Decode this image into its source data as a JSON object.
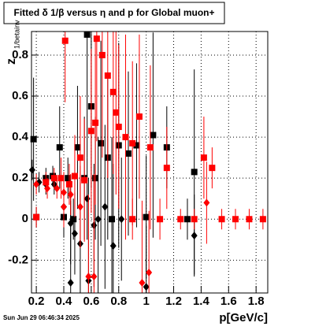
{
  "chart_data": {
    "type": "scatter",
    "title": "Fitted δ 1/β versus η and p for Global muon+",
    "ylabel": "z",
    "ylabel_sub": "1/betainv",
    "xlabel": "p[GeV/c]",
    "footer": "Sun Jun 29 06:46:34 2025",
    "xlim": [
      0.165,
      1.885
    ],
    "ylim": [
      -0.36,
      0.915
    ],
    "xticks": [
      0.2,
      0.4,
      0.6,
      0.8,
      1,
      1.2,
      1.4,
      1.6,
      1.8
    ],
    "yticks": [
      -0.2,
      0,
      0.2,
      0.4,
      0.6,
      0.8
    ],
    "grid": true,
    "series": [
      {
        "color": "#000000",
        "marker": "square",
        "x": [
          0.18,
          0.2,
          0.27,
          0.32,
          0.37,
          0.4,
          0.43,
          0.47,
          0.5,
          0.55,
          0.57,
          0.6,
          0.63,
          0.67,
          0.72,
          0.75,
          0.8,
          0.87,
          0.93,
          1.0,
          1.05,
          1.15,
          1.35,
          1.3
        ],
        "values": [
          0.39,
          0.01,
          0.2,
          0.21,
          0.35,
          0.01,
          0.2,
          0.0,
          0.35,
          0.2,
          0.9,
          0.55,
          0.2,
          0.37,
          0.3,
          0.0,
          0.36,
          0.32,
          0.36,
          0.01,
          0.41,
          0.35,
          0.23,
          0.0
        ],
        "errors": [
          0.3,
          0.05,
          0.05,
          0.05,
          0.2,
          0.1,
          0.1,
          0.1,
          0.3,
          0.3,
          0.6,
          0.4,
          0.3,
          0.5,
          0.4,
          0.4,
          0.5,
          0.4,
          0.4,
          0.3,
          0.5,
          0.2,
          0.5,
          0.1
        ]
      },
      {
        "color": "#000000",
        "marker": "diamond",
        "x": [
          0.17,
          0.22,
          0.27,
          0.33,
          0.4,
          0.45,
          0.48,
          0.52,
          0.57,
          0.62,
          0.65,
          0.7,
          0.45,
          0.58,
          0.76,
          1.0,
          1.35,
          0.82
        ],
        "values": [
          0.24,
          0.18,
          0.17,
          0.17,
          0.06,
          -0.02,
          -0.07,
          -0.12,
          0.1,
          -0.03,
          0.0,
          0.06,
          -0.31,
          -0.3,
          -0.13,
          -0.33,
          -0.08,
          0.0
        ],
        "errors": [
          0.05,
          0.05,
          0.05,
          0.05,
          0.1,
          0.2,
          0.2,
          0.3,
          0.2,
          0.3,
          0.4,
          0.4,
          0.4,
          0.5,
          0.4,
          0.3,
          0.2,
          0.3
        ]
      },
      {
        "color": "#ff0000",
        "marker": "square",
        "x": [
          0.2,
          0.27,
          0.33,
          0.38,
          0.41,
          0.44,
          0.48,
          0.52,
          0.55,
          0.6,
          0.63,
          0.64,
          0.68,
          0.72,
          0.76,
          0.78,
          0.8,
          0.85,
          0.9,
          0.95,
          1.03,
          1.15,
          1.25,
          1.35,
          1.42,
          1.48,
          1.55,
          1.65,
          1.75,
          1.85,
          0.9,
          1.1
        ],
        "values": [
          0.01,
          0.18,
          0.2,
          0.2,
          0.87,
          0.17,
          0.21,
          0.3,
          0.19,
          0.43,
          0.47,
          0.88,
          0.8,
          0.7,
          0.62,
          0.52,
          0.45,
          0.4,
          0.37,
          0.5,
          0.35,
          0.25,
          0.0,
          0.0,
          0.3,
          0.25,
          0.0,
          0.0,
          0.0,
          0.0,
          0.0,
          0.0
        ],
        "errors": [
          0.05,
          0.05,
          0.05,
          0.1,
          0.3,
          0.1,
          0.2,
          0.3,
          0.3,
          0.4,
          0.4,
          0.5,
          0.5,
          0.5,
          0.4,
          0.4,
          0.4,
          0.5,
          0.4,
          0.4,
          0.4,
          0.2,
          0.05,
          0.05,
          0.2,
          0.1,
          0.05,
          0.05,
          0.05,
          0.05,
          0.1,
          0.1
        ]
      },
      {
        "color": "#ff0000",
        "marker": "diamond",
        "x": [
          0.2,
          0.28,
          0.35,
          0.4,
          0.45,
          0.52,
          0.58,
          0.62,
          0.97,
          1.02,
          1.44,
          0.4
        ],
        "values": [
          0.17,
          0.15,
          0.15,
          0.13,
          0.12,
          0.06,
          -0.28,
          -0.28,
          -0.31,
          -0.26,
          0.08,
          0.06
        ],
        "errors": [
          0.05,
          0.05,
          0.05,
          0.1,
          0.1,
          0.2,
          0.4,
          0.5,
          0.4,
          0.3,
          0.2,
          0.1
        ]
      }
    ]
  }
}
